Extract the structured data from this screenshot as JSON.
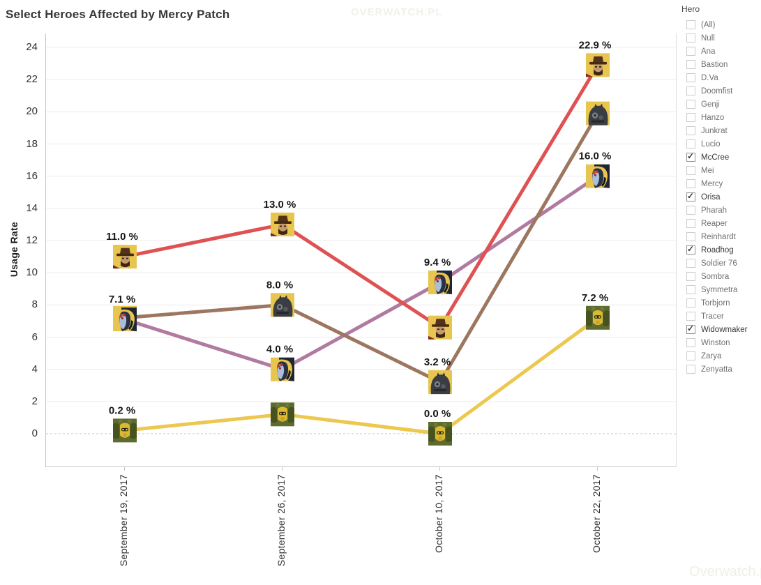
{
  "title": "Select Heroes Affected by Mercy Patch",
  "watermarks": {
    "top": "OVERWATCH.PL",
    "bottom": "Overwatch.pl"
  },
  "filter_panel": {
    "title": "Hero",
    "items": [
      {
        "label": "(All)",
        "checked": false
      },
      {
        "label": "Null",
        "checked": false
      },
      {
        "label": "Ana",
        "checked": false
      },
      {
        "label": "Bastion",
        "checked": false
      },
      {
        "label": "D.Va",
        "checked": false
      },
      {
        "label": "Doomfist",
        "checked": false
      },
      {
        "label": "Genji",
        "checked": false
      },
      {
        "label": "Hanzo",
        "checked": false
      },
      {
        "label": "Junkrat",
        "checked": false
      },
      {
        "label": "Lucio",
        "checked": false
      },
      {
        "label": "McCree",
        "checked": true
      },
      {
        "label": "Mei",
        "checked": false
      },
      {
        "label": "Mercy",
        "checked": false
      },
      {
        "label": "Orisa",
        "checked": true
      },
      {
        "label": "Pharah",
        "checked": false
      },
      {
        "label": "Reaper",
        "checked": false
      },
      {
        "label": "Reinhardt",
        "checked": false
      },
      {
        "label": "Roadhog",
        "checked": true
      },
      {
        "label": "Soldier 76",
        "checked": false
      },
      {
        "label": "Sombra",
        "checked": false
      },
      {
        "label": "Symmetra",
        "checked": false
      },
      {
        "label": "Torbjorn",
        "checked": false
      },
      {
        "label": "Tracer",
        "checked": false
      },
      {
        "label": "Widowmaker",
        "checked": true
      },
      {
        "label": "Winston",
        "checked": false
      },
      {
        "label": "Zarya",
        "checked": false
      },
      {
        "label": "Zenyatta",
        "checked": false
      }
    ]
  },
  "chart_data": {
    "type": "line",
    "title": "Select Heroes Affected by Mercy Patch",
    "xlabel": "",
    "ylabel": "Usage Rate",
    "ylim": [
      0,
      24
    ],
    "ytick_step": 2,
    "grid": true,
    "legend_position": "none",
    "categories": [
      "September 19, 2017",
      "September 26, 2017",
      "October 10, 2017",
      "October 22, 2017"
    ],
    "series": [
      {
        "name": "McCree",
        "color": "#df5152",
        "icon": "mccree-icon",
        "values": [
          11.0,
          13.0,
          6.6,
          22.9
        ],
        "labels": [
          "11.0 %",
          "13.0 %",
          null,
          "22.9 %"
        ]
      },
      {
        "name": "Roadhog",
        "color": "#9d7660",
        "icon": "roadhog-icon",
        "values": [
          7.2,
          8.0,
          3.2,
          19.9
        ],
        "labels": [
          null,
          "8.0 %",
          "3.2 %",
          null
        ]
      },
      {
        "name": "Widowmaker",
        "color": "#b07aa1",
        "icon": "widowmaker-icon",
        "values": [
          7.1,
          4.0,
          9.4,
          16.0
        ],
        "labels": [
          "7.1 %",
          "4.0 %",
          "9.4 %",
          "16.0 %"
        ]
      },
      {
        "name": "Orisa",
        "color": "#ecc84e",
        "icon": "orisa-icon",
        "values": [
          0.2,
          1.2,
          0.0,
          7.2
        ],
        "labels": [
          "0.2 %",
          null,
          "0.0 %",
          "7.2 %"
        ]
      }
    ]
  },
  "colors": {
    "gridline": "#ececec",
    "zero_line": "#c4c4c4",
    "axis_text": "#303030",
    "mccree": "#df5152",
    "roadhog": "#9d7660",
    "widowmaker": "#b07aa1",
    "orisa": "#ecc84e"
  }
}
